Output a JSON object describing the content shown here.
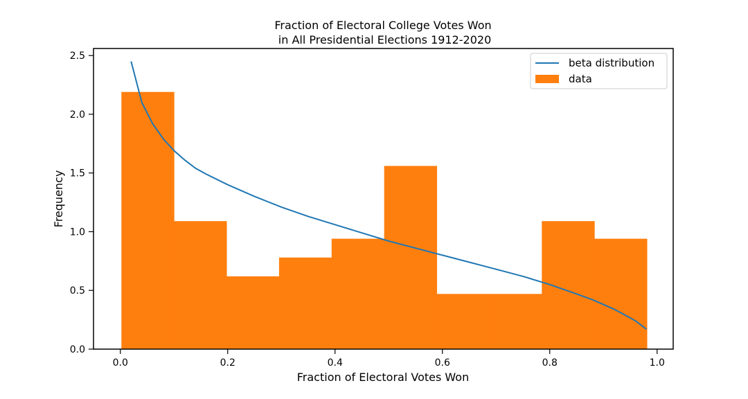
{
  "chart_data": {
    "type": "bar",
    "title_line1": "Fraction of Electoral College Votes Won",
    "title_line2": " in All Presidential Elections 1912-2020",
    "xlabel": "Fraction of Electoral Votes Won",
    "ylabel": "Frequency",
    "xlim": [
      -0.05,
      1.03
    ],
    "ylim": [
      0,
      2.56
    ],
    "xticks": [
      "0.0",
      "0.2",
      "0.4",
      "0.6",
      "0.8",
      "1.0"
    ],
    "xtick_values": [
      0.0,
      0.2,
      0.4,
      0.6,
      0.8,
      1.0
    ],
    "yticks": [
      "0.0",
      "0.5",
      "1.0",
      "1.5",
      "2.0",
      "2.5"
    ],
    "ytick_values": [
      0.0,
      0.5,
      1.0,
      1.5,
      2.0,
      2.5
    ],
    "grid": false,
    "legend_position": "top-right",
    "histogram": {
      "name": "data",
      "color": "#ff7f0e",
      "bin_edges": [
        0.002,
        0.0999,
        0.1978,
        0.2957,
        0.3936,
        0.4915,
        0.5894,
        0.6873,
        0.7852,
        0.8831,
        0.981
      ],
      "values": [
        2.19,
        1.09,
        0.62,
        0.78,
        0.94,
        1.56,
        0.47,
        0.47,
        1.09,
        0.94
      ]
    },
    "series": [
      {
        "name": "beta distribution",
        "color": "#1f77b4",
        "x": [
          0.02,
          0.04,
          0.06,
          0.08,
          0.1,
          0.12,
          0.14,
          0.16,
          0.2,
          0.25,
          0.3,
          0.35,
          0.4,
          0.45,
          0.5,
          0.55,
          0.6,
          0.65,
          0.7,
          0.75,
          0.8,
          0.85,
          0.88,
          0.9,
          0.92,
          0.94,
          0.96,
          0.98
        ],
        "y": [
          2.45,
          2.1,
          1.92,
          1.79,
          1.69,
          1.61,
          1.54,
          1.49,
          1.4,
          1.3,
          1.21,
          1.13,
          1.06,
          0.99,
          0.92,
          0.86,
          0.8,
          0.74,
          0.68,
          0.62,
          0.55,
          0.47,
          0.42,
          0.38,
          0.34,
          0.29,
          0.24,
          0.17
        ]
      }
    ]
  }
}
